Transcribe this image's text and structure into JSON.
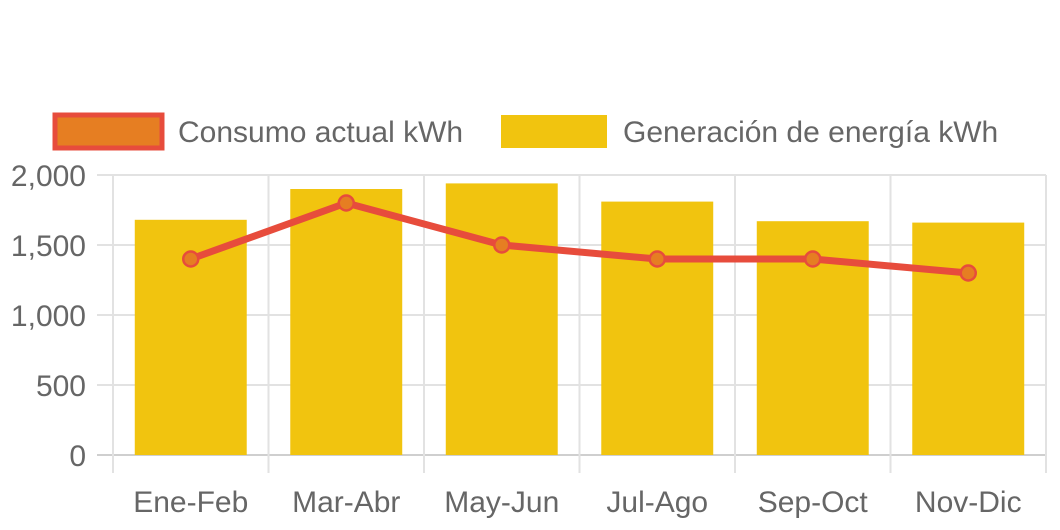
{
  "chart_data": {
    "type": "bar",
    "categories": [
      "Ene-Feb",
      "Mar-Abr",
      "May-Jun",
      "Jul-Ago",
      "Sep-Oct",
      "Nov-Dic"
    ],
    "series": [
      {
        "name": "Consumo actual kWh",
        "type": "line",
        "values": [
          1400,
          1800,
          1500,
          1400,
          1400,
          1300
        ],
        "color": "#e74c3c",
        "point_color": "#e67e22"
      },
      {
        "name": "Generación de energía kWh",
        "type": "bar",
        "values": [
          1680,
          1900,
          1940,
          1810,
          1670,
          1660
        ],
        "color": "#f1c40f"
      }
    ],
    "ylim": [
      0,
      2000
    ],
    "yticks": [
      "0",
      "500",
      "1,000",
      "1,500",
      "2,000"
    ],
    "ytick_values": [
      0,
      500,
      1000,
      1500,
      2000
    ],
    "grid": true,
    "legend_position": "top"
  }
}
